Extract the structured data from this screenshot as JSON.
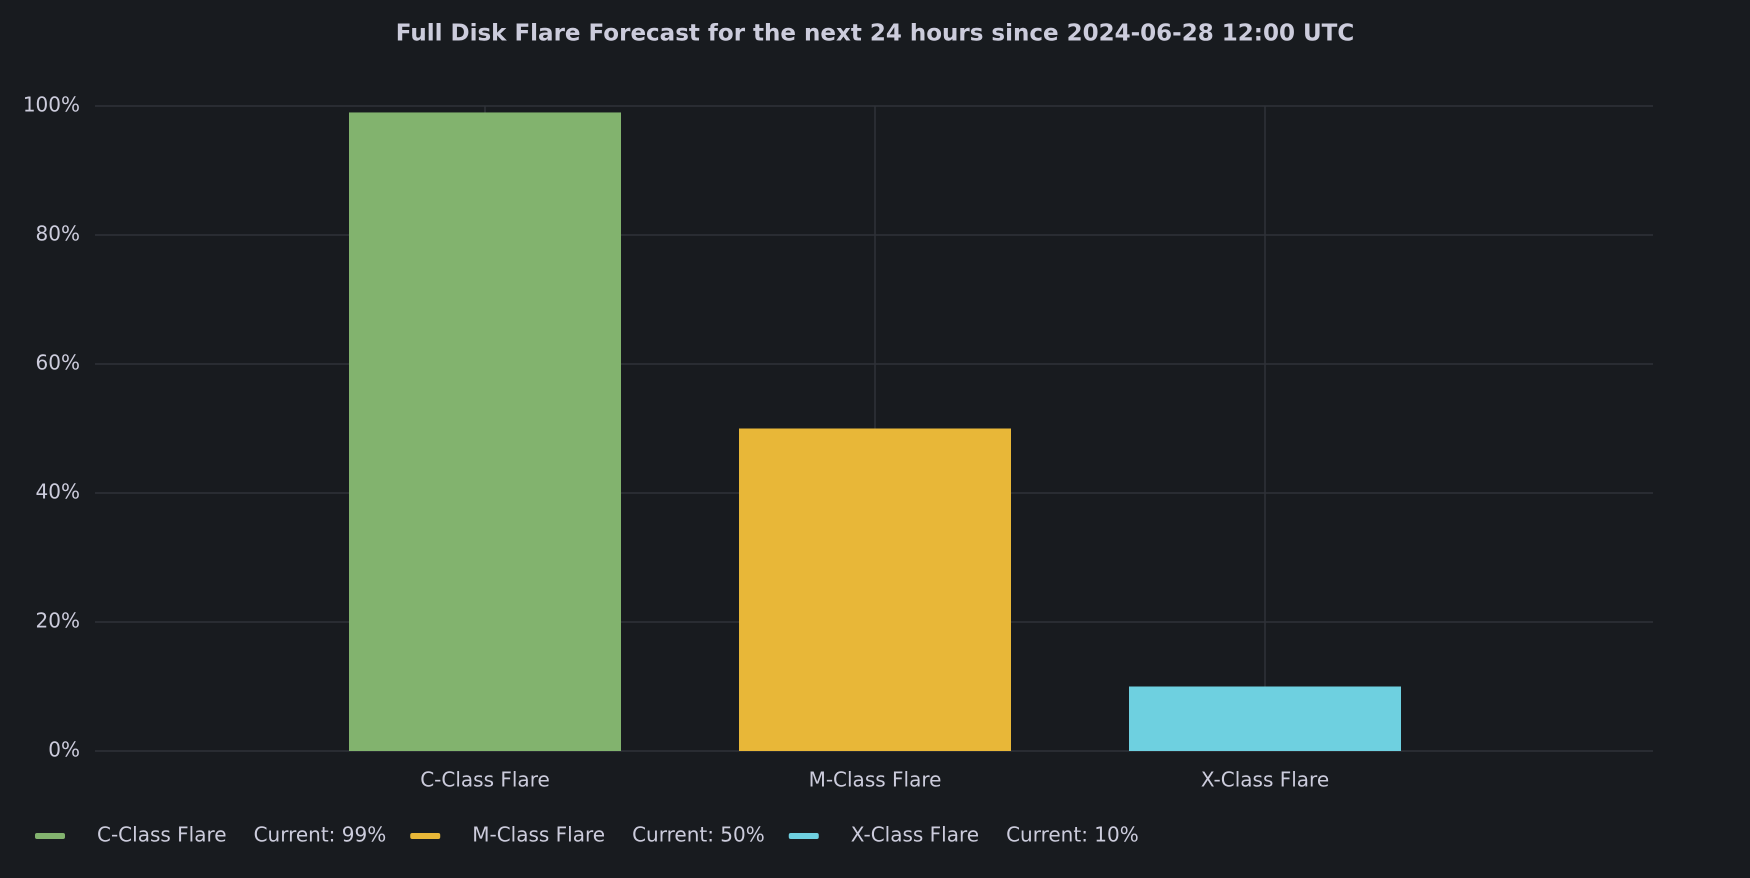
{
  "chart_data": {
    "type": "bar",
    "title": "Full Disk Flare Forecast for the next 24 hours since 2024-06-28 12:00 UTC",
    "categories": [
      "C-Class Flare",
      "M-Class Flare",
      "X-Class Flare"
    ],
    "values": [
      99,
      50,
      10
    ],
    "value_labels": [
      "Current: 99%",
      "Current: 50%",
      "Current: 10%"
    ],
    "colors": [
      "#82b36e",
      "#e8b738",
      "#6ed0e0"
    ],
    "ylim": [
      0,
      100
    ],
    "yticks": [
      {
        "value": 0,
        "label": "0%"
      },
      {
        "value": 20,
        "label": "20%"
      },
      {
        "value": 40,
        "label": "40%"
      },
      {
        "value": 60,
        "label": "60%"
      },
      {
        "value": 80,
        "label": "80%"
      },
      {
        "value": 100,
        "label": "100%"
      }
    ],
    "grid": true,
    "legend": "bottom-left"
  }
}
